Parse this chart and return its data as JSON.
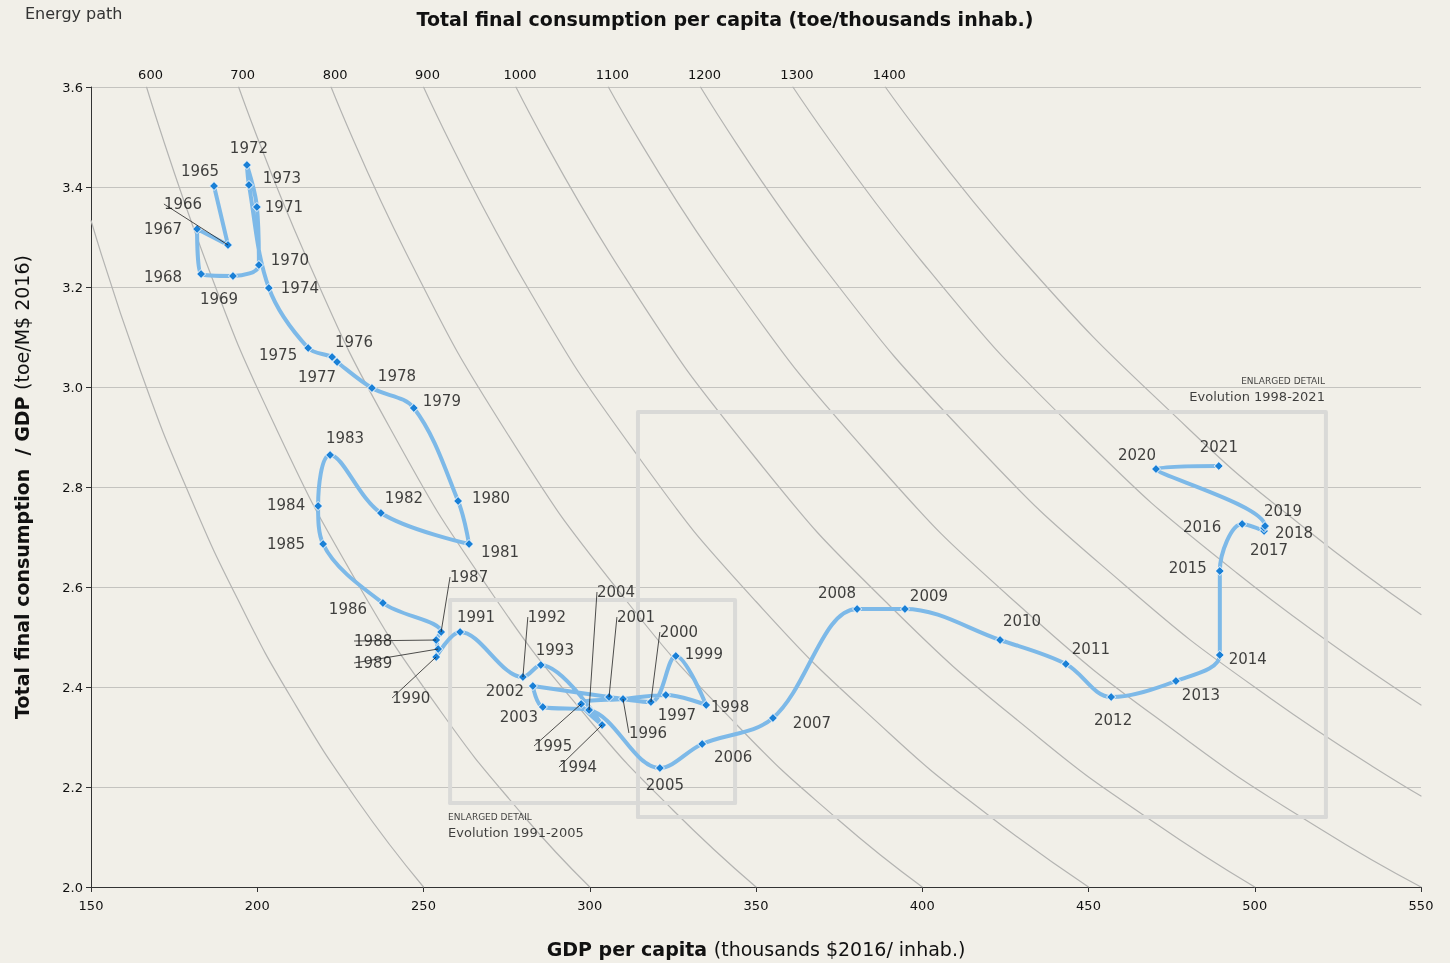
{
  "chart_data": {
    "type": "line",
    "title": "Energy path",
    "subtitle": "Total final consumption per capita (toe/thousands inhab.)",
    "xlabel": "GDP per capita (thousands $2016/ inhab.)",
    "ylabel": "Total final consumption  / GDP (toe/M$ 2016)",
    "xlim": [
      150,
      550
    ],
    "xticks": [
      150,
      200,
      250,
      300,
      350,
      400,
      450,
      500,
      550
    ],
    "ylim": [
      2.0,
      3.6
    ],
    "yticks": [
      {
        "value": 2,
        "label": "2.0"
      },
      {
        "value": 2.2,
        "label": "2.2"
      },
      {
        "value": 2.4,
        "label": "2.4"
      },
      {
        "value": 2.6,
        "label": "2.6"
      },
      {
        "value": 2.8,
        "label": "2.8"
      },
      {
        "value": 3,
        "label": "3.0"
      },
      {
        "value": 3.2,
        "label": "3.2"
      },
      {
        "value": 3.4,
        "label": "3.4"
      },
      {
        "value": 3.6,
        "label": "3.6"
      }
    ],
    "grid": "y",
    "series": [
      {
        "type": "line",
        "color": "#b4b4b2",
        "marker": "none",
        "x": [
          150,
          165,
          180,
          195,
          210,
          230,
          250
        ],
        "values": [
          3.333,
          3.03,
          2.778,
          2.564,
          2.381,
          2.174,
          2.0
        ]
      },
      {
        "type": "line",
        "name": "600",
        "color": "#b4b4b2",
        "marker": "none",
        "x": [
          166.7,
          185,
          205,
          230,
          255,
          280,
          300
        ],
        "values": [
          3.6,
          3.243,
          2.927,
          2.609,
          2.353,
          2.143,
          2.0
        ]
      },
      {
        "type": "line",
        "name": "700",
        "color": "#b4b4b2",
        "marker": "none",
        "x": [
          194.4,
          215,
          240,
          270,
          300,
          325,
          350
        ],
        "values": [
          3.6,
          3.256,
          2.917,
          2.593,
          2.333,
          2.154,
          2.0
        ]
      },
      {
        "type": "line",
        "name": "800",
        "color": "#b4b4b2",
        "marker": "none",
        "x": [
          222.2,
          245,
          275,
          310,
          345,
          375,
          400
        ],
        "values": [
          3.6,
          3.265,
          2.909,
          2.581,
          2.319,
          2.133,
          2.0
        ]
      },
      {
        "type": "line",
        "name": "900",
        "color": "#b4b4b2",
        "marker": "none",
        "x": [
          250,
          280,
          315,
          350,
          390,
          420,
          450
        ],
        "values": [
          3.6,
          3.214,
          2.857,
          2.571,
          2.308,
          2.143,
          2.0
        ]
      },
      {
        "type": "line",
        "name": "1000",
        "color": "#b4b4b2",
        "marker": "none",
        "x": [
          277.8,
          310,
          350,
          390,
          435,
          470,
          500
        ],
        "values": [
          3.6,
          3.226,
          2.857,
          2.564,
          2.299,
          2.128,
          2.0
        ]
      },
      {
        "type": "line",
        "name": "1100",
        "color": "#b4b4b2",
        "marker": "none",
        "x": [
          305.6,
          340,
          385,
          430,
          480,
          520,
          550
        ],
        "values": [
          3.6,
          3.235,
          2.857,
          2.558,
          2.292,
          2.115,
          2.0
        ]
      },
      {
        "type": "line",
        "name": "1200",
        "color": "#b4b4b2",
        "marker": "none",
        "x": [
          333.3,
          370,
          415,
          460,
          505,
          550
        ],
        "values": [
          3.6,
          3.243,
          2.892,
          2.609,
          2.376,
          2.182
        ]
      },
      {
        "type": "line",
        "name": "1300",
        "color": "#b4b4b2",
        "marker": "none",
        "x": [
          361.1,
          400,
          445,
          495,
          550
        ],
        "values": [
          3.6,
          3.25,
          2.921,
          2.626,
          2.364
        ]
      },
      {
        "type": "line",
        "name": "1400",
        "color": "#b4b4b2",
        "marker": "none",
        "x": [
          388.9,
          430,
          480,
          515,
          550
        ],
        "values": [
          3.6,
          3.256,
          2.917,
          2.718,
          2.545
        ]
      },
      {
        "color": "#dadad8",
        "marker": "none",
        "x": [
          258,
          258,
          343.7,
          343.7
        ],
        "values": [
          2.168,
          2.574,
          2.574,
          2.168
        ]
      },
      {
        "color": "#dadad8",
        "marker": "none",
        "x": [
          258,
          343.7
        ],
        "values": [
          2.168,
          2.168
        ]
      },
      {
        "color": "#d9d9d7",
        "marker": "none",
        "x": [
          314.5,
          314.5,
          521.4,
          521.4
        ],
        "values": [
          2.14,
          2.95,
          2.95,
          2.14
        ]
      },
      {
        "color": "#d9d9d7",
        "marker": "none",
        "x": [
          314.5,
          521.4
        ],
        "values": [
          2.14,
          2.14
        ]
      },
      {
        "color": "#7db9e8",
        "marker": "diamond",
        "x": [
          187.0,
          191.2,
          181.9,
          183.1,
          192.7,
          200.5,
          199.9,
          196.9,
          197.5,
          203.5,
          215.3,
          222.5,
          224.0,
          234.5,
          247.1,
          260.4,
          263.7,
          237.2,
          221.9,
          218.3,
          219.8,
          237.8,
          255.3,
          253.8,
          254.4,
          253.8,
          261.0,
          279.9,
          285.3,
          303.7,
          297.4,
          310.0,
          322.9,
          335.0,
          325.9,
          318.4,
          305.8,
          282.9,
          285.9,
          299.8,
          321.1,
          333.8,
          355.1,
          380.4,
          394.8,
          423.4,
          443.2,
          456.8,
          476.3,
          489.5,
          489.5,
          496.2,
          502.8,
          502.8,
          503.1,
          470.3,
          489.2
        ],
        "values": [
          3.402,
          3.284,
          3.316,
          3.226,
          3.222,
          3.244,
          3.36,
          3.444,
          3.404,
          3.198,
          3.078,
          3.06,
          3.05,
          2.998,
          2.958,
          2.772,
          2.686,
          2.748,
          2.864,
          2.762,
          2.686,
          2.568,
          2.51,
          2.494,
          2.476,
          2.46,
          2.51,
          2.42,
          2.444,
          2.324,
          2.366,
          2.376,
          2.384,
          2.364,
          2.462,
          2.37,
          2.38,
          2.402,
          2.36,
          2.354,
          2.238,
          2.286,
          2.338,
          2.556,
          2.556,
          2.494,
          2.446,
          2.38,
          2.412,
          2.464,
          2.632,
          2.726,
          2.712,
          2.718,
          2.722,
          2.836,
          2.842
        ]
      }
    ],
    "annotations": [
      {
        "text": "1965",
        "x": 187.0,
        "y": 3.402
      },
      {
        "text": "1966",
        "x": 191.2,
        "y": 3.284
      },
      {
        "text": "1967",
        "x": 181.9,
        "y": 3.316
      },
      {
        "text": "1968",
        "x": 183.1,
        "y": 3.226
      },
      {
        "text": "1969",
        "x": 192.7,
        "y": 3.222
      },
      {
        "text": "1970",
        "x": 200.5,
        "y": 3.244
      },
      {
        "text": "1971",
        "x": 199.9,
        "y": 3.36
      },
      {
        "text": "1972",
        "x": 196.9,
        "y": 3.444
      },
      {
        "text": "1973",
        "x": 197.5,
        "y": 3.404
      },
      {
        "text": "1974",
        "x": 203.5,
        "y": 3.198
      },
      {
        "text": "1975",
        "x": 215.3,
        "y": 3.078
      },
      {
        "text": "1976",
        "x": 222.5,
        "y": 3.06
      },
      {
        "text": "1977",
        "x": 224.0,
        "y": 3.05
      },
      {
        "text": "1978",
        "x": 234.5,
        "y": 2.998
      },
      {
        "text": "1979",
        "x": 247.1,
        "y": 2.958
      },
      {
        "text": "1980",
        "x": 260.4,
        "y": 2.772
      },
      {
        "text": "1981",
        "x": 263.7,
        "y": 2.686
      },
      {
        "text": "1982",
        "x": 237.2,
        "y": 2.748
      },
      {
        "text": "1983",
        "x": 221.9,
        "y": 2.864
      },
      {
        "text": "1984",
        "x": 218.3,
        "y": 2.762
      },
      {
        "text": "1985",
        "x": 219.8,
        "y": 2.686
      },
      {
        "text": "1986",
        "x": 237.8,
        "y": 2.568
      },
      {
        "text": "1987",
        "x": 255.3,
        "y": 2.51
      },
      {
        "text": "1988",
        "x": 253.8,
        "y": 2.494
      },
      {
        "text": "1989",
        "x": 254.4,
        "y": 2.476
      },
      {
        "text": "1990",
        "x": 253.8,
        "y": 2.46
      },
      {
        "text": "1991",
        "x": 261.0,
        "y": 2.51
      },
      {
        "text": "1992",
        "x": 279.9,
        "y": 2.42
      },
      {
        "text": "1993",
        "x": 285.3,
        "y": 2.444
      },
      {
        "text": "1994",
        "x": 303.7,
        "y": 2.324
      },
      {
        "text": "1995",
        "x": 297.4,
        "y": 2.366
      },
      {
        "text": "1996",
        "x": 310.0,
        "y": 2.376
      },
      {
        "text": "1997",
        "x": 322.9,
        "y": 2.384
      },
      {
        "text": "1998",
        "x": 335.0,
        "y": 2.364
      },
      {
        "text": "1999",
        "x": 325.9,
        "y": 2.462
      },
      {
        "text": "2000",
        "x": 318.4,
        "y": 2.37
      },
      {
        "text": "2001",
        "x": 305.8,
        "y": 2.38
      },
      {
        "text": "2002",
        "x": 282.9,
        "y": 2.402
      },
      {
        "text": "2003",
        "x": 285.9,
        "y": 2.36
      },
      {
        "text": "2004",
        "x": 299.8,
        "y": 2.354
      },
      {
        "text": "2005",
        "x": 321.1,
        "y": 2.238
      },
      {
        "text": "2006",
        "x": 333.8,
        "y": 2.286
      },
      {
        "text": "2007",
        "x": 355.1,
        "y": 2.338
      },
      {
        "text": "2008",
        "x": 380.4,
        "y": 2.556
      },
      {
        "text": "2009",
        "x": 394.8,
        "y": 2.556
      },
      {
        "text": "2010",
        "x": 423.4,
        "y": 2.494
      },
      {
        "text": "2011",
        "x": 443.2,
        "y": 2.446
      },
      {
        "text": "2012",
        "x": 456.8,
        "y": 2.38
      },
      {
        "text": "2013",
        "x": 476.3,
        "y": 2.412
      },
      {
        "text": "2014",
        "x": 489.5,
        "y": 2.464
      },
      {
        "text": "2015",
        "x": 489.5,
        "y": 2.632
      },
      {
        "text": "2016",
        "x": 496.2,
        "y": 2.726
      },
      {
        "text": "2017",
        "x": 502.8,
        "y": 2.712
      },
      {
        "text": "2018",
        "x": 502.8,
        "y": 2.718
      },
      {
        "text": "2019",
        "x": 503.1,
        "y": 2.722
      },
      {
        "text": "2020",
        "x": 470.3,
        "y": 2.836
      },
      {
        "text": "2021",
        "x": 489.2,
        "y": 2.842
      },
      {
        "text": "ENLARGED DETAIL",
        "x": 258,
        "y": 2.168
      },
      {
        "text": "Evolution 1991-2005",
        "x": 258,
        "y": 2.168
      },
      {
        "text": "ENLARGED DETAIL",
        "x": 521.4,
        "y": 2.95
      },
      {
        "text": "Evolution 1998-2021",
        "x": 521.4,
        "y": 2.95
      }
    ]
  }
}
